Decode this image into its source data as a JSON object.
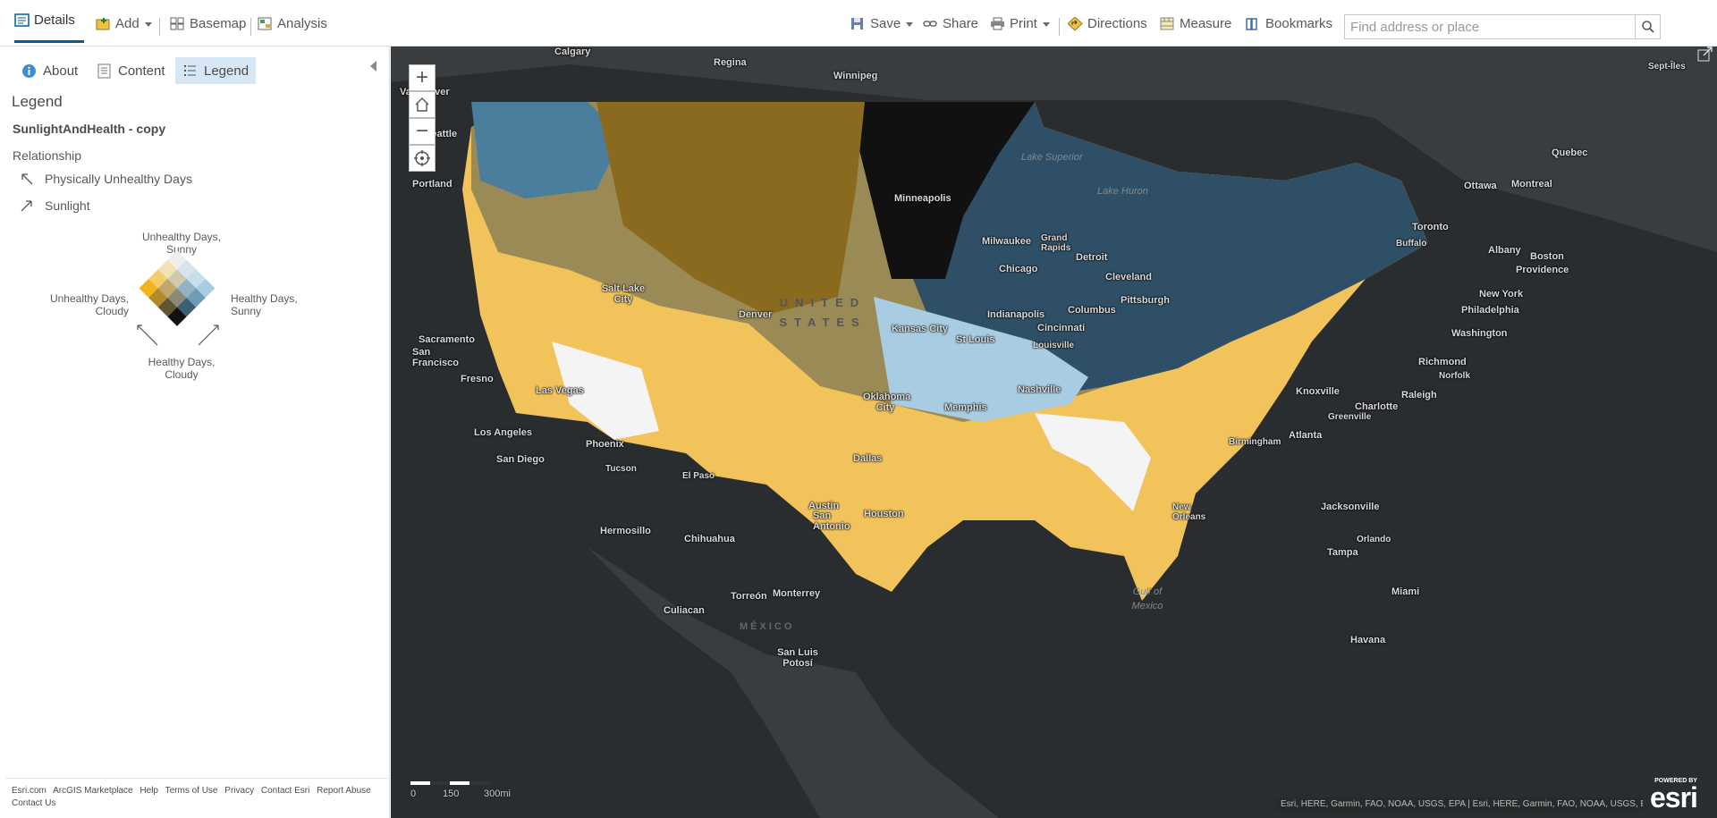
{
  "toolbar": {
    "details": "Details",
    "add": "Add",
    "basemap": "Basemap",
    "analysis": "Analysis",
    "save": "Save",
    "share": "Share",
    "print": "Print",
    "directions": "Directions",
    "measure": "Measure",
    "bookmarks": "Bookmarks",
    "search_placeholder": "Find address or place"
  },
  "panel": {
    "tabs": [
      {
        "label": "About",
        "icon": "info-icon"
      },
      {
        "label": "Content",
        "icon": "content-icon"
      },
      {
        "label": "Legend",
        "icon": "legend-list-icon"
      }
    ],
    "active_tab": "Legend",
    "legend_heading": "Legend",
    "layer_name": "SunlightAndHealth - copy",
    "relationship_label": "Relationship",
    "axis1": "Physically Unhealthy Days",
    "axis2": "Sunlight",
    "diagram": {
      "top": [
        "Unhealthy Days,",
        "Sunny"
      ],
      "left": [
        "Unhealthy Days,",
        "Cloudy"
      ],
      "right": [
        "Healthy Days,",
        "Sunny"
      ],
      "bottom": [
        "Healthy Days,",
        "Cloudy"
      ],
      "colors": [
        [
          "#eeeeee",
          "#d6e3ec",
          "#c7dde9",
          "#a8cde3"
        ],
        [
          "#f1e2b3",
          "#cfc9ad",
          "#93b2c2",
          "#6b9dbb"
        ],
        [
          "#f3cd6b",
          "#c1a76a",
          "#8a8a74",
          "#3d5f76"
        ],
        [
          "#f3b31f",
          "#b08a2b",
          "#5f5534",
          "#111111"
        ]
      ]
    },
    "footer_links": [
      "Esri.com",
      "ArcGIS Marketplace",
      "Help",
      "Terms of Use",
      "Privacy",
      "Contact Esri",
      "Report Abuse",
      "Contact Us"
    ]
  },
  "map": {
    "labels": {
      "calgary": "Calgary",
      "regina": "Regina",
      "winnipeg": "Winnipeg",
      "vancouver": "Vancouver",
      "septiles": "Sept-Îles",
      "lake_superior": "Lake Superior",
      "quebec": "Quebec",
      "ottawa": "Ottawa",
      "montreal": "Montreal",
      "seattle": "Seattle",
      "portland": "Portland",
      "minneapolis": "Minneapolis",
      "lake_huron": "Lake Huron",
      "toronto": "Toronto",
      "milwaukee": "Milwaukee",
      "grand_rapids": "Grand Rapids",
      "detroit": "Detroit",
      "buffalo": "Buffalo",
      "albany": "Albany",
      "boston": "Boston",
      "providence": "Providence",
      "chicago": "Chicago",
      "cleveland": "Cleveland",
      "pittsburgh": "Pittsburgh",
      "new_york": "New York",
      "salt_lake_city": "Salt Lake City",
      "united_states": "UNITED STATES",
      "denver": "Denver",
      "indianapolis": "Indianapolis",
      "columbus": "Columbus",
      "philadelphia": "Philadelphia",
      "sacramento": "Sacramento",
      "kansas_city": "Kansas City",
      "st_louis": "St Louis",
      "cincinnati": "Cincinnati",
      "washington": "Washington",
      "san_francisco": "San Francisco",
      "louisville": "Louisville",
      "richmond": "Richmond",
      "fresno": "Fresno",
      "las_vegas": "Las Vegas",
      "norfolk": "Norfolk",
      "nashville": "Nashville",
      "knoxville": "Knoxville",
      "raleigh": "Raleigh",
      "oklahoma_city": "Oklahoma City",
      "memphis": "Memphis",
      "charlotte": "Charlotte",
      "greenville": "Greenville",
      "los_angeles": "Los Angeles",
      "phoenix": "Phoenix",
      "birmingham": "Birmingham",
      "atlanta": "Atlanta",
      "san_diego": "San Diego",
      "dallas": "Dallas",
      "tucson": "Tucson",
      "el_paso": "El Paso",
      "austin": "Austin",
      "jacksonville": "Jacksonville",
      "new_orleans": "New Orleans",
      "houston": "Houston",
      "san_antonio": "San Antonio",
      "hermosillo": "Hermosillo",
      "chihuahua": "Chihuahua",
      "orlando": "Orlando",
      "tampa": "Tampa",
      "gulf_of_mexico": "Gulf of Mexico",
      "miami": "Miami",
      "torreon": "Torreón",
      "monterrey": "Monterrey",
      "culiacan": "Culiacan",
      "mexico": "MÉXICO",
      "havana": "Havana",
      "san_luis_potosi": "San Luis Potosí"
    },
    "scale": {
      "l0": "0",
      "l1": "150",
      "l2": "300mi"
    },
    "attribution": "Esri, HERE, Garmin, FAO, NOAA, USGS, EPA | Esri, HERE, Garmin, FAO, NOAA, USGS, EPA",
    "powered_by": "POWERED BY",
    "logo": "esri"
  }
}
